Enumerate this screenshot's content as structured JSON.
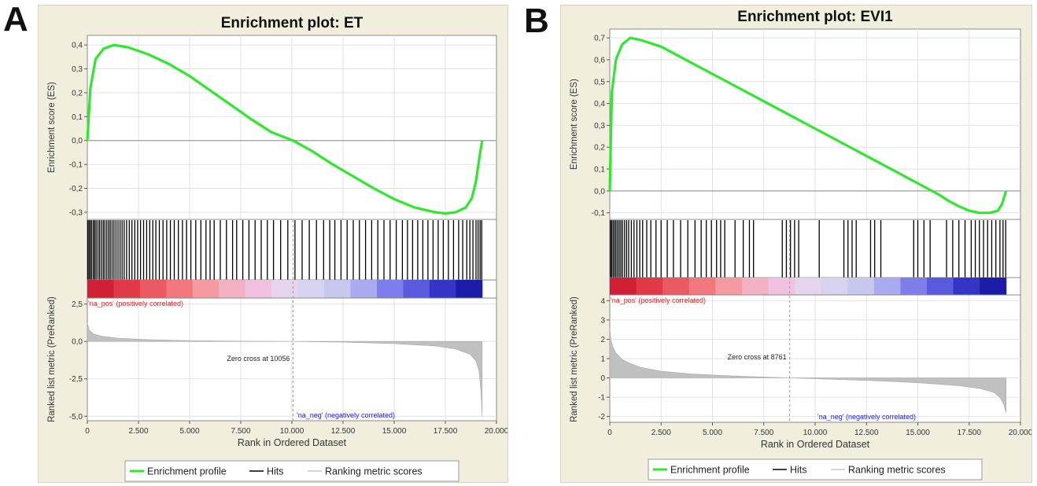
{
  "panels": [
    {
      "letter": "A",
      "chart_data": {
        "type": "line",
        "title": "Enrichment plot: ET",
        "xlabel": "Rank in Ordered Dataset",
        "xlim": [
          0,
          20000
        ],
        "x_ticks": [
          0,
          2500,
          5000,
          7500,
          10000,
          12500,
          15000,
          17500,
          20000
        ],
        "x_tick_labels": [
          "0",
          "2.500",
          "5.000",
          "7.500",
          "10.000",
          "12.500",
          "15.000",
          "17.500",
          "20.000"
        ],
        "n_genes": 19300,
        "es_plot": {
          "ylabel": "Enrichment score (ES)",
          "ylim": [
            -0.33,
            0.44
          ],
          "y_ticks": [
            -0.3,
            -0.2,
            -0.1,
            0.0,
            0.1,
            0.2,
            0.3,
            0.4
          ],
          "y_tick_labels": [
            "-0,3",
            "-0,2",
            "-0,1",
            "0,0",
            "0,1",
            "0,2",
            "0,3",
            "0,4"
          ],
          "series": [
            {
              "name": "Enrichment profile",
              "color": "#2ee82e",
              "x": [
                0,
                150,
                400,
                800,
                1300,
                2000,
                3000,
                4000,
                5000,
                6000,
                7000,
                8000,
                9000,
                10056,
                11000,
                12000,
                13000,
                14000,
                15000,
                16000,
                17000,
                17500,
                18000,
                18500,
                18800,
                19000,
                19150,
                19300
              ],
              "y": [
                0.0,
                0.22,
                0.34,
                0.385,
                0.4,
                0.39,
                0.36,
                0.32,
                0.27,
                0.21,
                0.15,
                0.09,
                0.035,
                0.0,
                -0.045,
                -0.1,
                -0.15,
                -0.2,
                -0.245,
                -0.28,
                -0.3,
                -0.305,
                -0.3,
                -0.28,
                -0.24,
                -0.17,
                -0.08,
                0.0
              ]
            }
          ]
        },
        "hits": [
          20,
          80,
          140,
          210,
          290,
          360,
          430,
          520,
          600,
          690,
          780,
          860,
          950,
          1040,
          1120,
          1210,
          1300,
          1400,
          1500,
          1600,
          1700,
          1800,
          1920,
          2050,
          2180,
          2320,
          2460,
          2600,
          2750,
          2900,
          3050,
          3200,
          3350,
          3520,
          3700,
          3880,
          4060,
          4250,
          4450,
          4650,
          4850,
          5060,
          5300,
          5550,
          5800,
          6000,
          6200,
          6500,
          6800,
          7100,
          7300,
          7600,
          7900,
          8200,
          8500,
          8800,
          9100,
          9450,
          9800,
          10150,
          10500,
          10850,
          11200,
          11550,
          11850,
          12100,
          12400,
          12700,
          13000,
          13300,
          13600,
          13900,
          14200,
          14500,
          14800,
          15100,
          15400,
          15650,
          15900,
          16150,
          16400,
          16650,
          16900,
          17150,
          17400,
          17650,
          17900,
          18150,
          18350,
          18550,
          18700,
          18850,
          19000,
          19100,
          19200,
          19280
        ],
        "heatmap_colors": [
          "#d11f35",
          "#e03a48",
          "#eb5a63",
          "#f1797e",
          "#f49aa0",
          "#f3b2c4",
          "#f0c2e0",
          "#e4d4ee",
          "#d6d2ef",
          "#c8c8ee",
          "#aaaaf0",
          "#7e7eea",
          "#5a5ade",
          "#3434c6",
          "#1c1ca8"
        ],
        "metric_plot": {
          "ylabel": "Ranked list metric (PreRanked)",
          "ylim": [
            -5.3,
            2.9
          ],
          "y_ticks": [
            -5.0,
            -2.5,
            0.0,
            2.5
          ],
          "y_tick_labels": [
            "-5,0",
            "-2,5",
            "0,0",
            "2,5"
          ],
          "series": [
            {
              "name": "Ranking metric scores",
              "color": "#c0c0c0",
              "x": [
                0,
                100,
                300,
                700,
                1500,
                3000,
                5000,
                7500,
                10056,
                12500,
                15000,
                17000,
                18000,
                18700,
                19000,
                19150,
                19250,
                19300
              ],
              "y": [
                1.2,
                0.75,
                0.5,
                0.35,
                0.22,
                0.12,
                0.05,
                0.02,
                0.0,
                -0.05,
                -0.15,
                -0.3,
                -0.5,
                -0.85,
                -1.3,
                -2.0,
                -3.5,
                -5.0
              ]
            }
          ],
          "zero_cross_label": "Zero cross at 10056",
          "zero_cross_x": 10056,
          "pos_label": "'na_pos' (positively correlated)",
          "neg_label": "'na_neg' (negatively correlated)"
        },
        "legend": [
          "Enrichment profile",
          "Hits",
          "Ranking metric scores"
        ]
      }
    },
    {
      "letter": "B",
      "chart_data": {
        "type": "line",
        "title": "Enrichment plot: EVI1",
        "xlabel": "Rank in Ordered Dataset",
        "xlim": [
          0,
          20000
        ],
        "x_ticks": [
          0,
          2500,
          5000,
          7500,
          10000,
          12500,
          15000,
          17500,
          20000
        ],
        "x_tick_labels": [
          "0",
          "2.500",
          "5.000",
          "7.500",
          "10.000",
          "12.500",
          "15.000",
          "17.500",
          "20.000"
        ],
        "n_genes": 19300,
        "es_plot": {
          "ylabel": "Enrichment score (ES)",
          "ylim": [
            -0.13,
            0.74
          ],
          "y_ticks": [
            -0.1,
            0.0,
            0.1,
            0.2,
            0.3,
            0.4,
            0.5,
            0.6,
            0.7
          ],
          "y_tick_labels": [
            "-0,1",
            "0,0",
            "0,1",
            "0,2",
            "0,3",
            "0,4",
            "0,5",
            "0,6",
            "0,7"
          ],
          "series": [
            {
              "name": "Enrichment profile",
              "color": "#2ee82e",
              "x": [
                0,
                100,
                300,
                600,
                1000,
                1500,
                2500,
                3500,
                4500,
                5500,
                6500,
                7500,
                8500,
                9500,
                10500,
                11500,
                12500,
                13500,
                14500,
                15500,
                16000,
                16500,
                17000,
                17500,
                18000,
                18500,
                18900,
                19100,
                19300
              ],
              "y": [
                0.0,
                0.45,
                0.6,
                0.67,
                0.7,
                0.69,
                0.66,
                0.61,
                0.56,
                0.51,
                0.46,
                0.41,
                0.36,
                0.31,
                0.26,
                0.21,
                0.16,
                0.11,
                0.06,
                0.01,
                -0.015,
                -0.045,
                -0.07,
                -0.09,
                -0.1,
                -0.1,
                -0.09,
                -0.06,
                0.0
              ]
            }
          ]
        },
        "hits": [
          30,
          90,
          160,
          230,
          300,
          380,
          460,
          540,
          620,
          720,
          820,
          920,
          1050,
          1180,
          1320,
          1460,
          1600,
          1800,
          2000,
          2250,
          2500,
          2800,
          3100,
          3450,
          3800,
          4150,
          4450,
          4700,
          4950,
          5200,
          5400,
          5600,
          6100,
          6500,
          6800,
          7000,
          8400,
          8600,
          8800,
          9000,
          9200,
          10200,
          11400,
          11600,
          11800,
          12000,
          12700,
          12900,
          13200,
          14800,
          15000,
          15300,
          15600,
          16400,
          16700,
          17000,
          17300,
          17600,
          17800,
          18000,
          18200,
          18400,
          18600,
          18800,
          19000,
          19150,
          19280
        ],
        "heatmap_colors": [
          "#d11f35",
          "#e03a48",
          "#eb5a63",
          "#f1797e",
          "#f49aa0",
          "#f3b2c4",
          "#f0c2e0",
          "#e4d4ee",
          "#d6d2ef",
          "#c8c8ee",
          "#aaaaf0",
          "#7e7eea",
          "#5a5ade",
          "#3434c6",
          "#1c1ca8"
        ],
        "metric_plot": {
          "ylabel": "Ranked list metric (PreRanked)",
          "ylim": [
            -2.3,
            4.3
          ],
          "y_ticks": [
            -2,
            -1,
            0,
            1,
            2,
            3,
            4
          ],
          "y_tick_labels": [
            "-2",
            "-1",
            "0",
            "1",
            "2",
            "3",
            "4"
          ],
          "series": [
            {
              "name": "Ranking metric scores",
              "color": "#c0c0c0",
              "x": [
                0,
                50,
                150,
                300,
                600,
                1000,
                1500,
                2500,
                4000,
                6000,
                8761,
                11000,
                13000,
                15000,
                17000,
                18000,
                18700,
                19000,
                19200,
                19300
              ],
              "y": [
                2.6,
                2.0,
                1.6,
                1.3,
                0.95,
                0.75,
                0.55,
                0.35,
                0.2,
                0.1,
                0.0,
                -0.08,
                -0.15,
                -0.25,
                -0.4,
                -0.55,
                -0.75,
                -1.0,
                -1.4,
                -1.8
              ]
            }
          ],
          "zero_cross_label": "Zero cross at 8761",
          "zero_cross_x": 8761,
          "pos_label": "'na_pos' (positively correlated)",
          "neg_label": "'na_neg' (negatively correlated)"
        },
        "legend": [
          "Enrichment profile",
          "Hits",
          "Ranking metric scores"
        ]
      }
    }
  ]
}
